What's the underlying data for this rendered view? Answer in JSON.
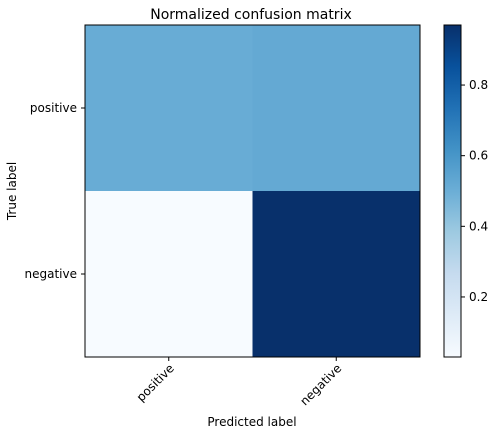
{
  "chart_data": {
    "type": "heatmap",
    "title": "Normalized confusion matrix",
    "xlabel": "Predicted label",
    "ylabel": "True label",
    "x_categories": [
      "positive",
      "negative"
    ],
    "y_categories": [
      "positive",
      "negative"
    ],
    "values": [
      [
        0.51,
        0.52
      ],
      [
        0.03,
        0.97
      ]
    ],
    "colormap": "Blues",
    "colorbar": {
      "range": [
        0.03,
        0.97
      ],
      "ticks": [
        0.2,
        0.4,
        0.6,
        0.8
      ],
      "tick_labels": [
        "0.2",
        "0.4",
        "0.6",
        "0.8"
      ]
    }
  }
}
